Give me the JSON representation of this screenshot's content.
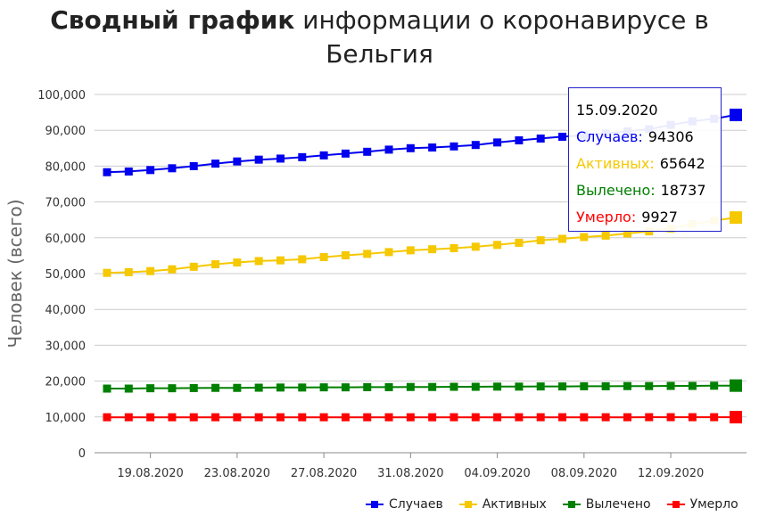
{
  "title": {
    "bold": "Сводный график",
    "rest_line1": " информации о коронавирусе в",
    "line2": "Бельгия"
  },
  "tooltip": {
    "date": "15.09.2020",
    "rows": [
      {
        "label": "Случаев:",
        "value": "94306",
        "color": "#0000ee"
      },
      {
        "label": "Активных:",
        "value": "65642",
        "color": "#f5c800"
      },
      {
        "label": "Вылечено:",
        "value": "18737",
        "color": "#008000"
      },
      {
        "label": "Умерло:",
        "value": "9927",
        "color": "#ff0000"
      }
    ]
  },
  "legend": [
    {
      "label": "Случаев",
      "color": "#0000ee"
    },
    {
      "label": "Активных",
      "color": "#f5c800"
    },
    {
      "label": "Вылечено",
      "color": "#008000"
    },
    {
      "label": "Умерло",
      "color": "#ff0000"
    }
  ],
  "chart_data": {
    "type": "line",
    "title": "Сводный график информации о коронавирусе в Бельгия",
    "xlabel": "",
    "ylabel": "Человек (всего)",
    "ylim": [
      0,
      100000
    ],
    "yticks": [
      0,
      10000,
      20000,
      30000,
      40000,
      50000,
      60000,
      70000,
      80000,
      90000,
      100000
    ],
    "ytick_labels": [
      "0",
      "10,000",
      "20,000",
      "30,000",
      "40,000",
      "50,000",
      "60,000",
      "70,000",
      "80,000",
      "90,000",
      "100,000"
    ],
    "xtick_labels": [
      "19.08.2020",
      "23.08.2020",
      "27.08.2020",
      "31.08.2020",
      "04.09.2020",
      "08.09.2020",
      "12.09.2020"
    ],
    "xtick_indices": [
      2,
      6,
      10,
      14,
      18,
      22,
      26
    ],
    "x": [
      "17.08.2020",
      "18.08.2020",
      "19.08.2020",
      "20.08.2020",
      "21.08.2020",
      "22.08.2020",
      "23.08.2020",
      "24.08.2020",
      "25.08.2020",
      "26.08.2020",
      "27.08.2020",
      "28.08.2020",
      "29.08.2020",
      "30.08.2020",
      "31.08.2020",
      "01.09.2020",
      "02.09.2020",
      "03.09.2020",
      "04.09.2020",
      "05.09.2020",
      "06.09.2020",
      "07.09.2020",
      "08.09.2020",
      "09.09.2020",
      "10.09.2020",
      "11.09.2020",
      "12.09.2020",
      "13.09.2020",
      "14.09.2020",
      "15.09.2020"
    ],
    "grid": true,
    "legend_position": "bottom-right",
    "series": [
      {
        "name": "Случаев",
        "color": "#0000ee",
        "values": [
          78300,
          78500,
          78900,
          79400,
          80000,
          80700,
          81300,
          81800,
          82100,
          82500,
          83000,
          83500,
          84000,
          84600,
          85000,
          85200,
          85500,
          85900,
          86600,
          87200,
          87700,
          88200,
          88600,
          89100,
          89700,
          90300,
          91500,
          92500,
          93200,
          94306
        ]
      },
      {
        "name": "Активных",
        "color": "#f5c800",
        "values": [
          50200,
          50400,
          50700,
          51200,
          51900,
          52600,
          53100,
          53500,
          53700,
          54000,
          54600,
          55100,
          55500,
          56000,
          56500,
          56800,
          57100,
          57500,
          58000,
          58600,
          59300,
          59700,
          60200,
          60600,
          61200,
          61800,
          62600,
          63800,
          64800,
          65642
        ]
      },
      {
        "name": "Вылечено",
        "color": "#008000",
        "values": [
          17900,
          17900,
          18000,
          18000,
          18050,
          18100,
          18100,
          18150,
          18200,
          18200,
          18250,
          18250,
          18300,
          18300,
          18350,
          18350,
          18400,
          18400,
          18450,
          18450,
          18500,
          18500,
          18550,
          18550,
          18600,
          18600,
          18650,
          18650,
          18700,
          18737
        ]
      },
      {
        "name": "Умерло",
        "color": "#ff0000",
        "values": [
          9900,
          9900,
          9900,
          9900,
          9900,
          9900,
          9900,
          9900,
          9900,
          9900,
          9900,
          9900,
          9900,
          9900,
          9900,
          9900,
          9910,
          9910,
          9910,
          9910,
          9910,
          9910,
          9910,
          9910,
          9910,
          9920,
          9920,
          9920,
          9920,
          9927
        ]
      }
    ]
  }
}
